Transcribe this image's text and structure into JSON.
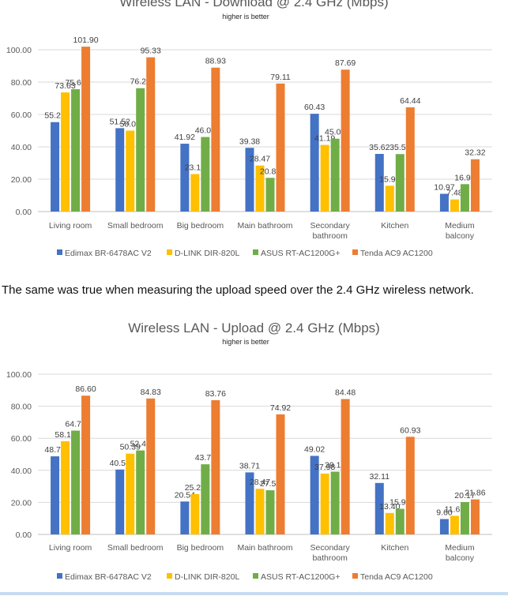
{
  "colors": {
    "edimax": "#4472c4",
    "dlink": "#ffc000",
    "asus": "#70ad47",
    "tenda": "#ed7d31",
    "grid": "#d9d9d9",
    "text": "#595959"
  },
  "between_text": "The same was true when measuring the upload speed over the 2.4 GHz wireless network.",
  "chart_data": [
    {
      "type": "bar",
      "title": "Wireless LAN - Download @ 2.4 GHz (Mbps)",
      "subtitle": "higher is better",
      "categories": [
        "Living room",
        "Small bedroom",
        "Big bedroom",
        "Main bathroom",
        "Secondary bathroom",
        "Kitchen",
        "Medium balcony"
      ],
      "category_lines": [
        [
          "Living room"
        ],
        [
          "Small bedroom"
        ],
        [
          "Big bedroom"
        ],
        [
          "Main bathroom"
        ],
        [
          "Secondary",
          "bathroom"
        ],
        [
          "Kitchen"
        ],
        [
          "Medium",
          "balcony"
        ]
      ],
      "series": [
        {
          "name": "Edimax BR-6478AC V2",
          "values": [
            55.26,
            51.52,
            41.92,
            39.38,
            60.43,
            35.62,
            10.97
          ]
        },
        {
          "name": "D-LINK DIR-820L",
          "values": [
            73.63,
            50.02,
            23.17,
            28.47,
            41.19,
            15.97,
            7.48
          ]
        },
        {
          "name": "ASUS RT-AC1200G+",
          "values": [
            75.6,
            76.23,
            46.08,
            20.84,
            45.01,
            35.51,
            16.93
          ]
        },
        {
          "name": "Tenda AC9 AC1200",
          "values": [
            101.9,
            95.33,
            88.93,
            79.11,
            87.69,
            64.44,
            32.32
          ]
        }
      ],
      "value_labels": [
        [
          "55.26",
          "51.52",
          "41.92",
          "39.38",
          "60.43",
          "35.62",
          "10.97"
        ],
        [
          "73.63",
          "50.02",
          "23.17",
          "28.47",
          "41.19",
          "15.97",
          "7.48"
        ],
        [
          "75.60",
          "76.23",
          "46.08",
          "20.84",
          "45.01",
          "35.51",
          "16.93"
        ],
        [
          "101.90",
          "95.33",
          "88.93",
          "79.11",
          "87.69",
          "64.44",
          "32.32"
        ]
      ],
      "yticks": [
        "0.00",
        "20.00",
        "40.00",
        "60.00",
        "80.00",
        "100.00"
      ],
      "ylim": [
        0,
        100
      ],
      "grid": true,
      "legend": "bottom"
    },
    {
      "type": "bar",
      "title": "Wireless LAN - Upload @ 2.4 GHz (Mbps)",
      "subtitle": "higher is better",
      "categories": [
        "Living room",
        "Small bedroom",
        "Big bedroom",
        "Main bathroom",
        "Secondary bathroom",
        "Kitchen",
        "Medium balcony"
      ],
      "category_lines": [
        [
          "Living room"
        ],
        [
          "Small bedroom"
        ],
        [
          "Big bedroom"
        ],
        [
          "Main bathroom"
        ],
        [
          "Secondary",
          "bathroom"
        ],
        [
          "Kitchen"
        ],
        [
          "Medium",
          "balcony"
        ]
      ],
      "series": [
        {
          "name": "Edimax BR-6478AC V2",
          "values": [
            48.73,
            40.5,
            20.54,
            38.71,
            49.02,
            32.11,
            9.6
          ]
        },
        {
          "name": "D-LINK DIR-820L",
          "values": [
            58.18,
            50.39,
            25.22,
            28.47,
            37.98,
            13.4,
            11.61
          ]
        },
        {
          "name": "ASUS RT-AC1200G+",
          "values": [
            64.79,
            52.41,
            43.77,
            27.55,
            39.15,
            15.98,
            20.17
          ]
        },
        {
          "name": "Tenda AC9 AC1200",
          "values": [
            86.6,
            84.83,
            83.76,
            74.92,
            84.48,
            60.93,
            21.86
          ]
        }
      ],
      "value_labels": [
        [
          "48.73",
          "40.50",
          "20.54",
          "38.71",
          "49.02",
          "32.11",
          "9.60"
        ],
        [
          "58.18",
          "50.39",
          "25.22",
          "28.47",
          "37.98",
          "13.40",
          "11.61"
        ],
        [
          "64.79",
          "52.41",
          "43.77",
          "27.55",
          "39.15",
          "15.98",
          "20.17"
        ],
        [
          "86.60",
          "84.83",
          "83.76",
          "74.92",
          "84.48",
          "60.93",
          "21.86"
        ]
      ],
      "yticks": [
        "0.00",
        "20.00",
        "40.00",
        "60.00",
        "80.00",
        "100.00"
      ],
      "ylim": [
        0,
        100
      ],
      "grid": true,
      "legend": "bottom"
    }
  ]
}
